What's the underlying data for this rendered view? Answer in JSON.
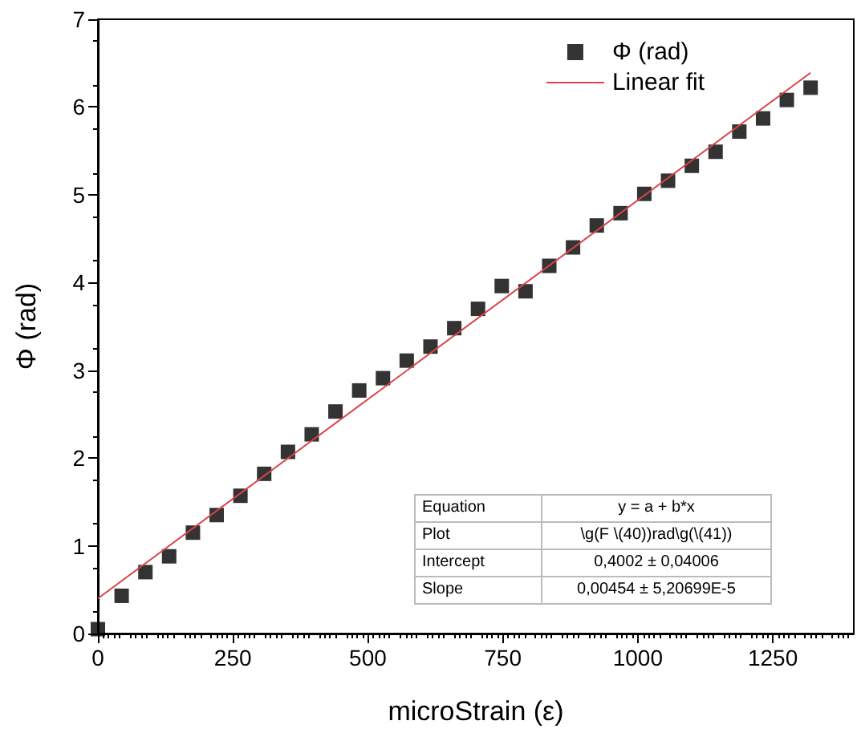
{
  "chart_data": {
    "type": "scatter",
    "xlabel": "microStrain (ε)",
    "ylabel": "Φ (rad)",
    "x": [
      0,
      44,
      88,
      132,
      176,
      220,
      264,
      308,
      352,
      396,
      440,
      484,
      528,
      572,
      616,
      660,
      704,
      748,
      792,
      836,
      880,
      924,
      968,
      1012,
      1056,
      1100,
      1144,
      1188,
      1232,
      1276,
      1320
    ],
    "series": [
      {
        "name": "Φ (rad)",
        "color": "#000000",
        "marker": "square",
        "values": [
          0.05,
          0.43,
          0.7,
          0.88,
          1.15,
          1.35,
          1.57,
          1.82,
          2.07,
          2.27,
          2.53,
          2.77,
          2.91,
          3.11,
          3.27,
          3.48,
          3.7,
          3.96,
          3.9,
          4.19,
          4.4,
          4.65,
          4.79,
          5.01,
          5.16,
          5.33,
          5.49,
          5.72,
          5.87,
          6.08,
          6.22
        ]
      },
      {
        "name": "Linear fit",
        "type": "line",
        "color": "#d9434b",
        "marker": "none",
        "line_style": "solid",
        "x": [
          0,
          1320
        ],
        "values": [
          0.4,
          6.39
        ]
      }
    ],
    "xlim": [
      0,
      1400
    ],
    "xticks": [
      0,
      250,
      500,
      750,
      1000,
      1250
    ],
    "ylim": [
      0,
      7
    ],
    "yticks": [
      0,
      1,
      2,
      3,
      4,
      5,
      6,
      7
    ],
    "grid": false,
    "legend": "top right",
    "annotations": [
      "Equation",
      "y = a + b*x",
      "Plot",
      "\\g(F \\(40))rad\\g(\\(41))",
      "Intercept",
      "0,4002 ± 0,04006",
      "Slope",
      "0,00454 ± 5,20699E-5"
    ]
  }
}
